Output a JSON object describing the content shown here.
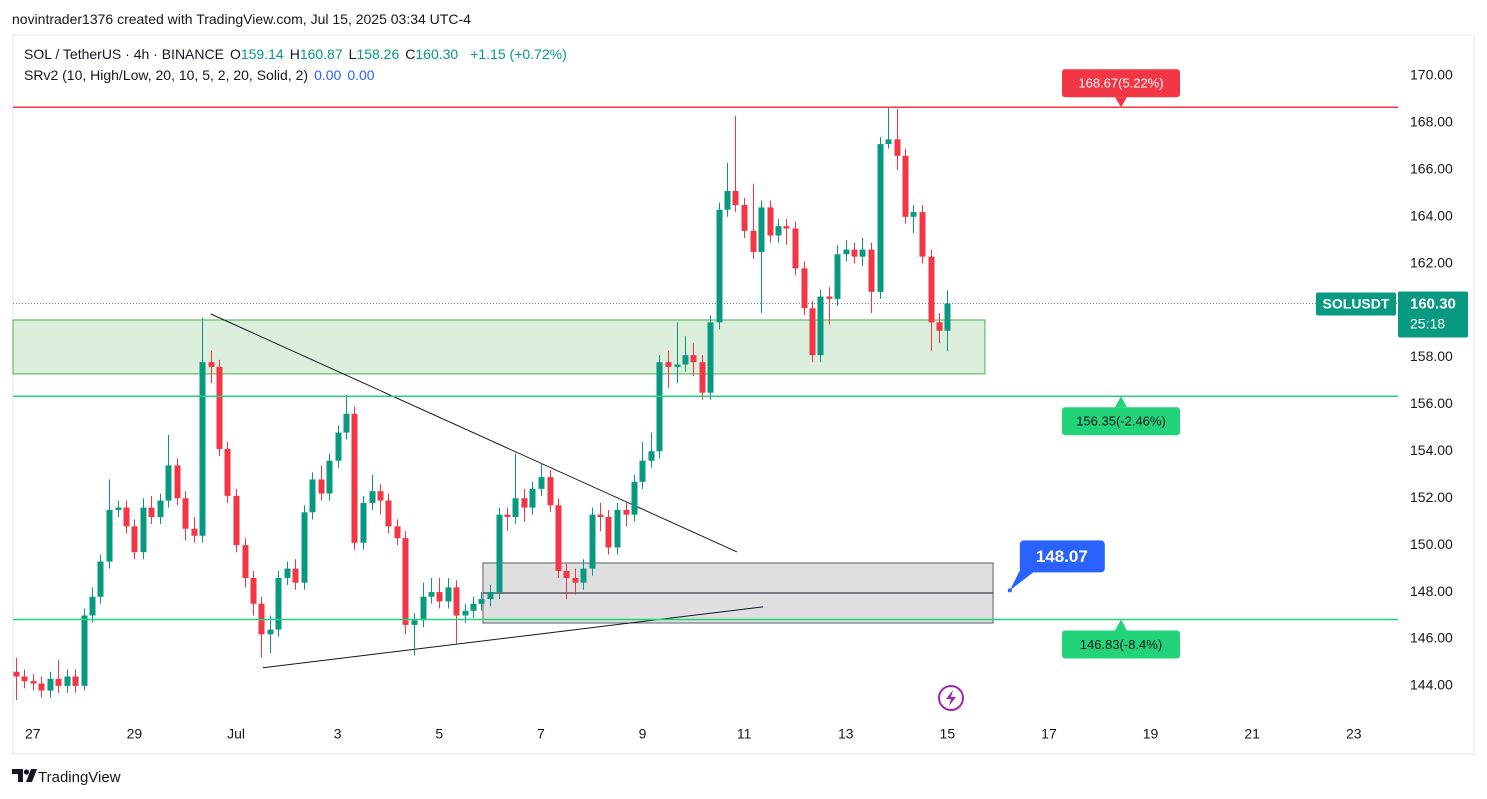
{
  "header": "novintrader1376 created with TradingView.com, Jul 15, 2025 03:34 UTC-4",
  "footer": "TradingView",
  "chart_data": {
    "type": "candlestick",
    "symbol_title": "SOL / TetherUS · 4h · BINANCE",
    "ohlc_legend": [
      {
        "key": "O",
        "value": 159.14
      },
      {
        "key": "H",
        "value": 160.87
      },
      {
        "key": "L",
        "value": 158.26
      },
      {
        "key": "C",
        "value": 160.3,
        "label": "160.30"
      }
    ],
    "change": "+1.15 (+0.72%)",
    "indicator": "SRv2 (10, High/Low, 20, 10, 5, 2, 20, Solid, 2)",
    "indicator_values": [
      "0.00",
      "0.00"
    ],
    "up_color": "#089981",
    "down_color": "#f23645",
    "x": [
      -0.33,
      -0.17,
      0,
      0.17,
      0.33,
      0.5,
      0.67,
      0.83,
      1,
      1.17,
      1.33,
      1.5,
      1.67,
      1.83,
      2,
      2.17,
      2.33,
      2.5,
      2.67,
      2.83,
      3,
      3.17,
      3.33,
      3.5,
      3.67,
      3.83,
      4,
      4.17,
      4.33,
      4.5,
      4.67,
      4.83,
      5,
      5.17,
      5.33,
      5.5,
      5.67,
      5.83,
      6,
      6.17,
      6.33,
      6.5,
      6.67,
      6.83,
      7,
      7.17,
      7.33,
      7.5,
      7.67,
      7.83,
      8,
      8.17,
      8.33,
      8.5,
      8.67,
      8.83,
      9,
      9.17,
      9.33,
      9.5,
      9.67,
      9.83,
      10,
      10.17,
      10.33,
      10.5,
      10.67,
      10.83,
      11,
      11.17,
      11.33,
      11.5,
      11.67,
      11.83,
      12,
      12.17,
      12.33,
      12.5,
      12.67,
      12.83,
      13,
      13.17,
      13.33,
      13.5,
      13.67,
      13.83,
      14,
      14.17,
      14.33,
      14.5,
      14.67,
      14.83,
      15,
      15.17,
      15.33,
      15.5,
      15.67,
      15.83,
      16,
      16.17,
      16.33,
      16.5,
      16.67,
      16.83,
      17,
      17.17,
      17.33,
      17.5,
      17.67,
      17.83,
      18
    ],
    "open": [
      144.6,
      144.4,
      144.2,
      144.1,
      143.8,
      144.3,
      144.0,
      144.4,
      144.0,
      147.0,
      147.8,
      149.3,
      151.5,
      151.6,
      150.8,
      149.7,
      151.6,
      151.2,
      151.9,
      153.4,
      152.0,
      150.7,
      150.4,
      157.8,
      157.6,
      154.1,
      152.1,
      150.0,
      148.6,
      147.5,
      146.2,
      146.4,
      148.6,
      149.0,
      148.4,
      151.4,
      152.8,
      152.2,
      153.6,
      154.8,
      155.6,
      150.1,
      151.8,
      152.3,
      151.9,
      150.8,
      150.3,
      146.6,
      146.8,
      147.8,
      148.0,
      147.6,
      148.2,
      147.0,
      147.2,
      147.5,
      147.7,
      148.0,
      151.3,
      151.2,
      152.0,
      151.6,
      152.4,
      152.9,
      151.7,
      148.9,
      148.6,
      148.4,
      149.0,
      151.3,
      151.2,
      149.9,
      151.5,
      151.3,
      152.7,
      153.6,
      154.0,
      157.8,
      157.6,
      157.7,
      158.1,
      157.8,
      156.5,
      159.5,
      164.3,
      165.1,
      164.5,
      163.4,
      162.5,
      164.4,
      163.2,
      163.6,
      163.5,
      161.8,
      160.1,
      158.1,
      160.6,
      160.5,
      162.4,
      162.6,
      162.3,
      162.6,
      160.8,
      167.1,
      167.3,
      166.6,
      164.0,
      164.2,
      162.3,
      159.5,
      159.14
    ],
    "high": [
      145.2,
      144.7,
      144.5,
      144.4,
      144.6,
      145.1,
      144.7,
      144.7,
      147.3,
      148.2,
      149.6,
      152.8,
      151.9,
      151.9,
      151.1,
      152.0,
      152.1,
      152.2,
      154.7,
      153.7,
      152.3,
      151.2,
      159.7,
      158.3,
      157.9,
      154.4,
      152.4,
      150.3,
      148.9,
      147.8,
      147.0,
      148.9,
      149.3,
      149.4,
      151.7,
      153.1,
      153.4,
      153.9,
      155.1,
      156.4,
      155.9,
      152.1,
      153.0,
      152.6,
      152.2,
      151.1,
      150.6,
      147.1,
      148.4,
      148.6,
      148.6,
      148.6,
      148.5,
      147.5,
      147.8,
      148.0,
      148.3,
      151.6,
      151.6,
      153.9,
      152.4,
      152.7,
      153.5,
      153.2,
      152.0,
      149.2,
      149.0,
      149.4,
      151.6,
      151.8,
      151.5,
      151.8,
      151.8,
      153.0,
      154.4,
      154.8,
      158.1,
      158.3,
      159.5,
      158.9,
      158.6,
      158.1,
      159.8,
      164.6,
      166.3,
      168.3,
      164.8,
      165.4,
      164.7,
      164.7,
      163.9,
      163.9,
      163.8,
      162.1,
      160.4,
      160.9,
      161.0,
      162.8,
      163.0,
      162.9,
      163.1,
      162.9,
      167.4,
      168.67,
      168.6,
      166.9,
      164.5,
      164.5,
      162.6,
      159.9,
      160.87
    ],
    "low": [
      143.4,
      143.9,
      143.8,
      143.5,
      143.5,
      143.7,
      143.7,
      143.7,
      143.8,
      146.7,
      147.5,
      149.0,
      151.2,
      150.5,
      149.4,
      149.4,
      150.9,
      150.9,
      151.6,
      151.7,
      150.2,
      150.1,
      150.1,
      156.9,
      153.8,
      151.8,
      149.7,
      148.2,
      147.0,
      145.2,
      145.4,
      146.1,
      148.3,
      148.1,
      148.1,
      151.1,
      151.9,
      151.9,
      153.3,
      154.5,
      149.8,
      149.8,
      151.5,
      151.3,
      150.5,
      150.0,
      146.2,
      145.3,
      146.5,
      147.5,
      147.3,
      147.3,
      145.8,
      146.7,
      146.9,
      147.2,
      147.4,
      147.7,
      150.6,
      150.9,
      151.0,
      151.3,
      152.1,
      151.4,
      148.6,
      147.7,
      147.9,
      148.1,
      148.7,
      150.6,
      149.6,
      149.6,
      150.8,
      151.0,
      152.4,
      153.3,
      153.7,
      156.7,
      156.9,
      157.4,
      157.2,
      156.2,
      156.2,
      159.2,
      164.0,
      164.2,
      163.1,
      162.2,
      159.9,
      162.9,
      162.9,
      162.8,
      161.5,
      159.8,
      157.8,
      157.8,
      159.4,
      160.2,
      162.1,
      162.0,
      161.9,
      159.9,
      160.5,
      166.9,
      166.0,
      163.7,
      163.3,
      162.0,
      158.3,
      158.6,
      158.26
    ],
    "close": [
      144.4,
      144.2,
      144.1,
      143.8,
      144.3,
      144.0,
      144.4,
      144.0,
      147.0,
      147.8,
      149.3,
      151.5,
      151.6,
      150.8,
      149.7,
      151.6,
      151.2,
      151.9,
      153.4,
      152.0,
      150.7,
      150.4,
      157.8,
      157.6,
      154.1,
      152.1,
      150.0,
      148.6,
      147.5,
      146.2,
      146.4,
      148.6,
      149.0,
      148.4,
      151.4,
      152.8,
      152.2,
      153.6,
      154.8,
      155.6,
      150.1,
      151.8,
      152.3,
      151.9,
      150.8,
      150.3,
      146.6,
      146.8,
      147.8,
      148.0,
      147.6,
      148.2,
      147.0,
      147.2,
      147.5,
      147.7,
      148.0,
      151.3,
      151.2,
      152.0,
      151.6,
      152.4,
      152.9,
      151.7,
      148.9,
      148.6,
      148.4,
      149.0,
      151.3,
      151.2,
      149.9,
      151.5,
      151.3,
      152.7,
      153.6,
      154.0,
      157.8,
      157.6,
      157.7,
      158.1,
      157.8,
      156.5,
      159.5,
      164.3,
      165.1,
      164.5,
      163.4,
      162.5,
      164.4,
      163.2,
      163.6,
      163.5,
      161.8,
      160.1,
      158.1,
      160.6,
      160.5,
      162.4,
      162.6,
      162.3,
      162.6,
      160.8,
      167.1,
      167.3,
      166.6,
      164.0,
      164.2,
      162.3,
      159.5,
      159.14,
      160.3
    ],
    "xlim": [
      -0.39,
      26.87
    ],
    "xticks": [
      {
        "value": 0,
        "label": "27"
      },
      {
        "value": 2,
        "label": "29"
      },
      {
        "value": 4,
        "label": "Jul"
      },
      {
        "value": 6,
        "label": "3"
      },
      {
        "value": 8,
        "label": "5"
      },
      {
        "value": 10,
        "label": "7"
      },
      {
        "value": 12,
        "label": "9"
      },
      {
        "value": 14,
        "label": "11"
      },
      {
        "value": 16,
        "label": "13"
      },
      {
        "value": 18,
        "label": "15"
      },
      {
        "value": 20,
        "label": "17"
      },
      {
        "value": 22,
        "label": "19"
      },
      {
        "value": 24,
        "label": "21"
      },
      {
        "value": 26,
        "label": "23"
      }
    ],
    "ylim": [
      142.63,
      171.75
    ],
    "yticks": [
      {
        "value": 144,
        "label": "144.00"
      },
      {
        "value": 146,
        "label": "146.00"
      },
      {
        "value": 148,
        "label": "148.00"
      },
      {
        "value": 150,
        "label": "150.00"
      },
      {
        "value": 152,
        "label": "152.00"
      },
      {
        "value": 154,
        "label": "154.00"
      },
      {
        "value": 156,
        "label": "156.00"
      },
      {
        "value": 158,
        "label": "158.00"
      },
      {
        "value": 160,
        "label": "160.00"
      },
      {
        "value": 162,
        "label": "162.00"
      },
      {
        "value": 164,
        "label": "164.00"
      },
      {
        "value": 166,
        "label": "166.00"
      },
      {
        "value": 168,
        "label": "168.00"
      },
      {
        "value": 170,
        "label": "170.00"
      }
    ],
    "levels": [
      {
        "value": 168.67,
        "label": "168.67(5.22%)",
        "color": "#f23645"
      },
      {
        "value": 156.35,
        "label": "156.35(-2.46%)",
        "color": "#22d37a"
      },
      {
        "value": 146.83,
        "label": "146.83(-8.4%)",
        "color": "#22d37a"
      }
    ],
    "zones": [
      {
        "x": [
          -0.39,
          18.74
        ],
        "y": [
          157.3,
          159.6
        ],
        "color": "#4caf50"
      },
      {
        "x": [
          8.86,
          18.9
        ],
        "y": [
          146.68,
          149.24
        ],
        "mid": 147.96,
        "color": "#5d606b"
      }
    ],
    "trendlines": [
      {
        "x": [
          3.5,
          13.86
        ],
        "y": [
          159.86,
          149.71
        ]
      },
      {
        "x": [
          4.53,
          14.37
        ],
        "y": [
          144.77,
          147.37
        ]
      }
    ],
    "callout": {
      "x": 19.23,
      "value": 148.07,
      "color": "#2962ff"
    },
    "price_label": {
      "symbol": "SOLUSDT",
      "value": 160.3,
      "label": "160.30",
      "countdown": "25:18"
    }
  }
}
